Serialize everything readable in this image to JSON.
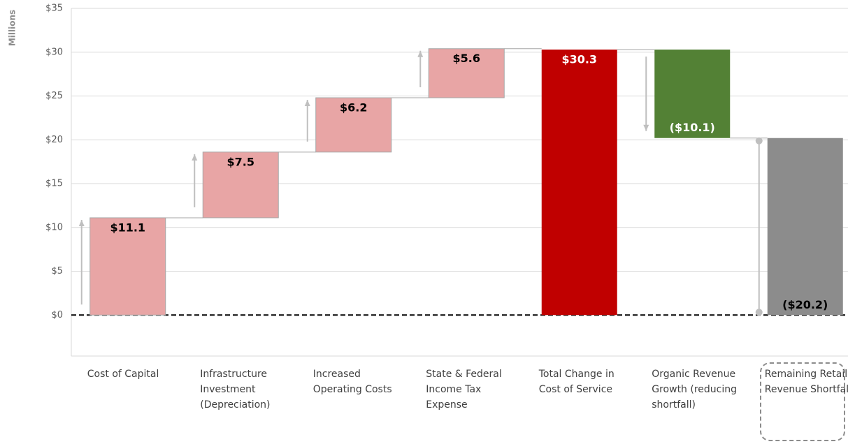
{
  "chart_data": {
    "type": "waterfall",
    "y_axis_label": "Millions",
    "categories": [
      "Cost of Capital",
      "Infrastructure Investment (Depreciation)",
      "Increased Operating Costs",
      "State & Federal Income Tax Expense",
      "Total Change in Cost of Service",
      "Organic Revenue Growth (reducing shortfall)",
      "Remaining Retail Revenue Shortfall"
    ],
    "values": [
      11.1,
      7.5,
      6.2,
      5.6,
      30.3,
      -10.1,
      20.2
    ],
    "value_labels": [
      "$11.1",
      "$7.5",
      "$6.2",
      "$5.6",
      "$30.3",
      "($10.1)",
      "($20.2)"
    ],
    "measures": [
      "relative",
      "relative",
      "relative",
      "relative",
      "total",
      "relative",
      "total"
    ],
    "colors": [
      "#e8a5a5",
      "#e8a5a5",
      "#e8a5a5",
      "#e8a5a5",
      "#c00000",
      "#538135",
      "#8c8c8c"
    ],
    "ylim": [
      -5,
      35
    ],
    "yticks": [
      {
        "value": 0,
        "label": "$0"
      },
      {
        "value": 5,
        "label": "$5"
      },
      {
        "value": 10,
        "label": "$10"
      },
      {
        "value": 15,
        "label": "$15"
      },
      {
        "value": 20,
        "label": "$20"
      },
      {
        "value": 25,
        "label": "$25"
      },
      {
        "value": 30,
        "label": "$30"
      },
      {
        "value": 35,
        "label": "$35"
      }
    ],
    "grid": true
  }
}
